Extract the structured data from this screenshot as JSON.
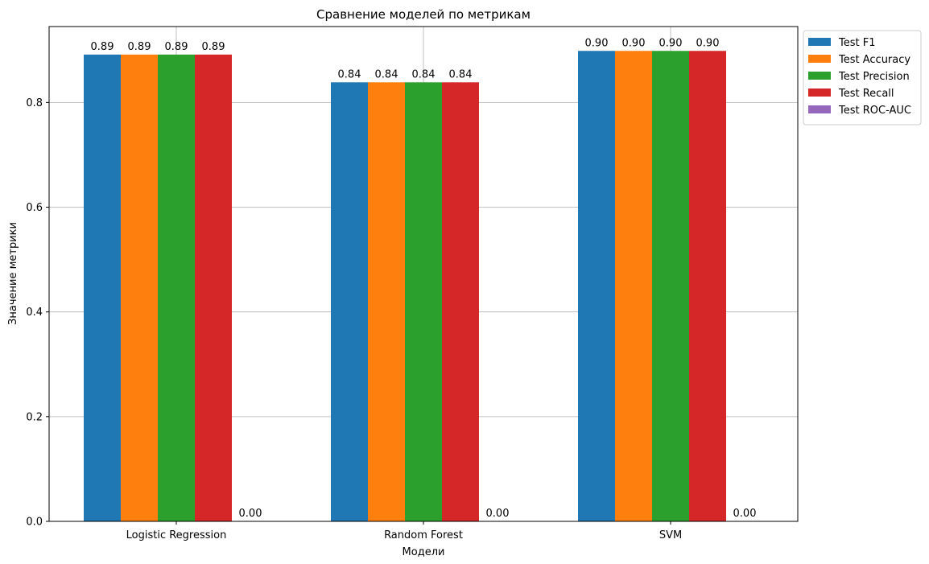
{
  "chart_data": {
    "type": "bar",
    "title": "Сравнение моделей по метрикам",
    "xlabel": "Модели",
    "ylabel": "Значение метрики",
    "categories": [
      "Logistic Regression",
      "Random Forest",
      "SVM"
    ],
    "series": [
      {
        "name": "Test F1",
        "color": "#1f77b4",
        "values": [
          0.8915,
          0.8385,
          0.8985
        ],
        "labels": [
          "0.89",
          "0.84",
          "0.90"
        ]
      },
      {
        "name": "Test Accuracy",
        "color": "#ff7f0e",
        "values": [
          0.8915,
          0.8385,
          0.8985
        ],
        "labels": [
          "0.89",
          "0.84",
          "0.90"
        ]
      },
      {
        "name": "Test Precision",
        "color": "#2ca02c",
        "values": [
          0.8915,
          0.8385,
          0.8985
        ],
        "labels": [
          "0.89",
          "0.84",
          "0.90"
        ]
      },
      {
        "name": "Test Recall",
        "color": "#d62728",
        "values": [
          0.8915,
          0.8385,
          0.8985
        ],
        "labels": [
          "0.89",
          "0.84",
          "0.90"
        ]
      },
      {
        "name": "Test ROC-AUC",
        "color": "#9467bd",
        "values": [
          0.0,
          0.0,
          0.0
        ],
        "labels": [
          "0.00",
          "0.00",
          "0.00"
        ]
      }
    ],
    "ylim": [
      0,
      0.945
    ],
    "yticks": [
      "0.0",
      "0.2",
      "0.4",
      "0.6",
      "0.8"
    ],
    "grid": true,
    "legend_position": "outside upper right"
  }
}
